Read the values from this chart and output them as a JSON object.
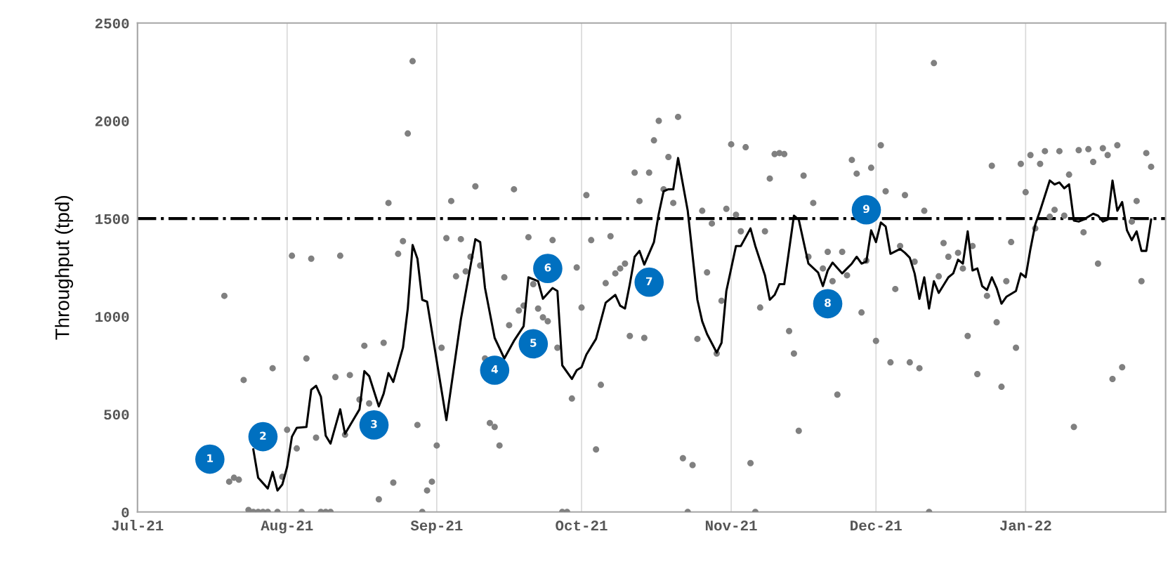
{
  "chart_data": {
    "type": "scatter",
    "ylabel": "Throughput (tpd)",
    "xlim": [
      "2021-07-01",
      "2022-01-30"
    ],
    "xticks": [
      {
        "value": "2021-07-01",
        "label": "Jul-21"
      },
      {
        "value": "2021-08-01",
        "label": "Aug-21"
      },
      {
        "value": "2021-09-01",
        "label": "Sep-21"
      },
      {
        "value": "2021-10-01",
        "label": "Oct-21"
      },
      {
        "value": "2021-11-01",
        "label": "Nov-21"
      },
      {
        "value": "2021-12-01",
        "label": "Dec-21"
      },
      {
        "value": "2022-01-01",
        "label": "Jan-22"
      }
    ],
    "ylim": [
      0,
      2500
    ],
    "yticks": [
      0,
      500,
      1000,
      1500,
      2000,
      2500
    ],
    "grid": "x",
    "legend": false,
    "ref_lines": [
      {
        "axis": "y",
        "value": 1500,
        "color": "#000000",
        "line_style": "dashdot"
      }
    ],
    "series": [
      {
        "color": "#808080",
        "marker": "circle",
        "x": [
          "2021-07-19",
          "2021-07-20",
          "2021-07-21",
          "2021-07-22",
          "2021-07-23",
          "2021-07-24",
          "2021-07-25",
          "2021-07-26",
          "2021-07-27",
          "2021-07-28",
          "2021-07-29",
          "2021-07-30",
          "2021-07-31",
          "2021-08-01",
          "2021-08-02",
          "2021-08-03",
          "2021-08-04",
          "2021-08-05",
          "2021-08-06",
          "2021-08-07",
          "2021-08-08",
          "2021-08-09",
          "2021-08-10",
          "2021-08-11",
          "2021-08-12",
          "2021-08-13",
          "2021-08-14",
          "2021-08-16",
          "2021-08-17",
          "2021-08-18",
          "2021-08-20",
          "2021-08-21",
          "2021-08-22",
          "2021-08-23",
          "2021-08-24",
          "2021-08-25",
          "2021-08-26",
          "2021-08-27",
          "2021-08-28",
          "2021-08-29",
          "2021-08-30",
          "2021-08-31",
          "2021-09-01",
          "2021-09-02",
          "2021-09-03",
          "2021-09-04",
          "2021-09-05",
          "2021-09-06",
          "2021-09-07",
          "2021-09-08",
          "2021-09-09",
          "2021-09-10",
          "2021-09-11",
          "2021-09-12",
          "2021-09-13",
          "2021-09-14",
          "2021-09-15",
          "2021-09-16",
          "2021-09-17",
          "2021-09-18",
          "2021-09-19",
          "2021-09-20",
          "2021-09-21",
          "2021-09-22",
          "2021-09-23",
          "2021-09-24",
          "2021-09-25",
          "2021-09-26",
          "2021-09-27",
          "2021-09-28",
          "2021-09-29",
          "2021-09-30",
          "2021-10-01",
          "2021-10-02",
          "2021-10-03",
          "2021-10-04",
          "2021-10-05",
          "2021-10-06",
          "2021-10-07",
          "2021-10-08",
          "2021-10-09",
          "2021-10-10",
          "2021-10-11",
          "2021-10-12",
          "2021-10-13",
          "2021-10-14",
          "2021-10-15",
          "2021-10-16",
          "2021-10-17",
          "2021-10-18",
          "2021-10-19",
          "2021-10-20",
          "2021-10-21",
          "2021-10-22",
          "2021-10-23",
          "2021-10-24",
          "2021-10-25",
          "2021-10-26",
          "2021-10-27",
          "2021-10-28",
          "2021-10-29",
          "2021-10-30",
          "2021-10-31",
          "2021-11-01",
          "2021-11-02",
          "2021-11-03",
          "2021-11-04",
          "2021-11-05",
          "2021-11-06",
          "2021-11-07",
          "2021-11-08",
          "2021-11-09",
          "2021-11-10",
          "2021-11-11",
          "2021-11-12",
          "2021-11-13",
          "2021-11-14",
          "2021-11-15",
          "2021-11-16",
          "2021-11-17",
          "2021-11-18",
          "2021-11-20",
          "2021-11-21",
          "2021-11-22",
          "2021-11-23",
          "2021-11-24",
          "2021-11-25",
          "2021-11-26",
          "2021-11-27",
          "2021-11-28",
          "2021-11-29",
          "2021-11-30",
          "2021-12-01",
          "2021-12-02",
          "2021-12-03",
          "2021-12-04",
          "2021-12-05",
          "2021-12-06",
          "2021-12-07",
          "2021-12-08",
          "2021-12-09",
          "2021-12-10",
          "2021-12-11",
          "2021-12-12",
          "2021-12-13",
          "2021-12-14",
          "2021-12-15",
          "2021-12-16",
          "2021-12-18",
          "2021-12-19",
          "2021-12-20",
          "2021-12-21",
          "2021-12-22",
          "2021-12-24",
          "2021-12-25",
          "2021-12-26",
          "2021-12-27",
          "2021-12-28",
          "2021-12-29",
          "2021-12-30",
          "2021-12-31",
          "2022-01-01",
          "2022-01-02",
          "2022-01-03",
          "2022-01-04",
          "2022-01-05",
          "2022-01-06",
          "2022-01-07",
          "2022-01-08",
          "2022-01-09",
          "2022-01-10",
          "2022-01-11",
          "2022-01-12",
          "2022-01-13",
          "2022-01-14",
          "2022-01-15",
          "2022-01-16",
          "2022-01-17",
          "2022-01-18",
          "2022-01-19",
          "2022-01-20",
          "2022-01-21",
          "2022-01-23",
          "2022-01-24",
          "2022-01-25",
          "2022-01-26",
          "2022-01-27"
        ],
        "values": [
          1105,
          155,
          175,
          165,
          675,
          10,
          0,
          0,
          0,
          0,
          735,
          0,
          180,
          420,
          1310,
          325,
          0,
          785,
          1295,
          380,
          0,
          0,
          0,
          690,
          1310,
          395,
          700,
          575,
          850,
          555,
          65,
          865,
          1580,
          150,
          1320,
          1385,
          1935,
          2305,
          445,
          0,
          110,
          155,
          340,
          840,
          1400,
          1590,
          1205,
          1395,
          1230,
          1305,
          1665,
          1260,
          785,
          455,
          435,
          340,
          1200,
          955,
          1650,
          1030,
          1055,
          1405,
          1165,
          1040,
          995,
          975,
          1390,
          840,
          0,
          0,
          580,
          1250,
          1045,
          1620,
          1390,
          320,
          650,
          1170,
          1410,
          1220,
          1245,
          1270,
          900,
          1735,
          1590,
          890,
          1735,
          1900,
          2000,
          1650,
          1815,
          1580,
          2020,
          275,
          0,
          240,
          885,
          1540,
          1225,
          1475,
          810,
          1080,
          1550,
          1880,
          1520,
          1435,
          1865,
          250,
          0,
          1045,
          1435,
          1705,
          1830,
          1835,
          1830,
          925,
          810,
          415,
          1720,
          1305,
          1580,
          1245,
          1330,
          1180,
          600,
          1330,
          1210,
          1800,
          1730,
          1020,
          1285,
          1760,
          875,
          1875,
          1640,
          765,
          1140,
          1360,
          1620,
          765,
          1280,
          735,
          1540,
          0,
          2295,
          1205,
          1375,
          1305,
          1325,
          1245,
          900,
          1360,
          705,
          1105,
          1770,
          970,
          640,
          1180,
          1380,
          840,
          1780,
          1635,
          1825,
          1450,
          1780,
          1845,
          1510,
          1545,
          1845,
          1515,
          1725,
          435,
          1850,
          1430,
          1855,
          1790,
          1270,
          1860,
          1825,
          680,
          1875,
          740,
          1485,
          1590,
          1180,
          1835,
          1765
        ]
      },
      {
        "type": "line",
        "color": "#000000",
        "marker": "none",
        "line_style": "solid",
        "x": [
          "2021-07-25",
          "2021-07-26",
          "2021-07-28",
          "2021-07-29",
          "2021-07-30",
          "2021-07-31",
          "2021-08-01",
          "2021-08-02",
          "2021-08-03",
          "2021-08-05",
          "2021-08-06",
          "2021-08-07",
          "2021-08-08",
          "2021-08-09",
          "2021-08-10",
          "2021-08-12",
          "2021-08-13",
          "2021-08-16",
          "2021-08-17",
          "2021-08-18",
          "2021-08-20",
          "2021-08-21",
          "2021-08-22",
          "2021-08-23",
          "2021-08-25",
          "2021-08-26",
          "2021-08-27",
          "2021-08-28",
          "2021-08-29",
          "2021-08-30",
          "2021-09-03",
          "2021-09-06",
          "2021-09-09",
          "2021-09-10",
          "2021-09-11",
          "2021-09-13",
          "2021-09-15",
          "2021-09-16",
          "2021-09-17",
          "2021-09-19",
          "2021-09-20",
          "2021-09-22",
          "2021-09-23",
          "2021-09-25",
          "2021-09-26",
          "2021-09-27",
          "2021-09-29",
          "2021-09-30",
          "2021-10-01",
          "2021-10-02",
          "2021-10-04",
          "2021-10-06",
          "2021-10-08",
          "2021-10-09",
          "2021-10-10",
          "2021-10-11",
          "2021-10-12",
          "2021-10-13",
          "2021-10-14",
          "2021-10-16",
          "2021-10-17",
          "2021-10-18",
          "2021-10-19",
          "2021-10-20",
          "2021-10-21",
          "2021-10-23",
          "2021-10-25",
          "2021-10-26",
          "2021-10-27",
          "2021-10-29",
          "2021-10-30",
          "2021-10-31",
          "2021-11-02",
          "2021-11-03",
          "2021-11-05",
          "2021-11-06",
          "2021-11-08",
          "2021-11-09",
          "2021-11-10",
          "2021-11-11",
          "2021-11-12",
          "2021-11-14",
          "2021-11-15",
          "2021-11-17",
          "2021-11-19",
          "2021-11-20",
          "2021-11-21",
          "2021-11-22",
          "2021-11-24",
          "2021-11-25",
          "2021-11-26",
          "2021-11-27",
          "2021-11-28",
          "2021-11-29",
          "2021-11-30",
          "2021-12-01",
          "2021-12-02",
          "2021-12-03",
          "2021-12-04",
          "2021-12-06",
          "2021-12-07",
          "2021-12-08",
          "2021-12-09",
          "2021-12-10",
          "2021-12-11",
          "2021-12-12",
          "2021-12-13",
          "2021-12-14",
          "2021-12-16",
          "2021-12-17",
          "2021-12-18",
          "2021-12-19",
          "2021-12-20",
          "2021-12-21",
          "2021-12-22",
          "2021-12-23",
          "2021-12-24",
          "2021-12-25",
          "2021-12-26",
          "2021-12-27",
          "2021-12-28",
          "2021-12-30",
          "2021-12-31",
          "2022-01-01",
          "2022-01-02",
          "2022-01-03",
          "2022-01-04",
          "2022-01-06",
          "2022-01-07",
          "2022-01-08",
          "2022-01-09",
          "2022-01-10",
          "2022-01-11",
          "2022-01-12",
          "2022-01-13",
          "2022-01-15",
          "2022-01-16",
          "2022-01-17",
          "2022-01-18",
          "2022-01-19",
          "2022-01-20",
          "2022-01-21",
          "2022-01-22",
          "2022-01-23",
          "2022-01-24",
          "2022-01-25",
          "2022-01-26",
          "2022-01-27"
        ],
        "values": [
          320,
          175,
          120,
          205,
          110,
          140,
          230,
          385,
          430,
          435,
          625,
          645,
          590,
          390,
          350,
          525,
          400,
          525,
          720,
          695,
          540,
          605,
          710,
          665,
          840,
          1040,
          1365,
          1295,
          1085,
          1075,
          470,
          985,
          1395,
          1380,
          1145,
          890,
          785,
          830,
          875,
          950,
          1200,
          1180,
          1090,
          1145,
          1130,
          750,
          680,
          725,
          740,
          805,
          885,
          1070,
          1110,
          1055,
          1040,
          1165,
          1305,
          1335,
          1265,
          1380,
          1525,
          1640,
          1650,
          1650,
          1810,
          1540,
          1085,
          975,
          910,
          815,
          865,
          1130,
          1360,
          1360,
          1450,
          1360,
          1210,
          1085,
          1110,
          1165,
          1165,
          1515,
          1495,
          1270,
          1225,
          1155,
          1235,
          1275,
          1220,
          1245,
          1270,
          1305,
          1270,
          1280,
          1440,
          1380,
          1480,
          1460,
          1320,
          1345,
          1325,
          1300,
          1220,
          1090,
          1200,
          1040,
          1180,
          1120,
          1200,
          1220,
          1290,
          1270,
          1435,
          1235,
          1245,
          1155,
          1135,
          1200,
          1145,
          1065,
          1100,
          1130,
          1220,
          1200,
          1345,
          1470,
          1540,
          1695,
          1675,
          1685,
          1655,
          1675,
          1490,
          1485,
          1495,
          1525,
          1515,
          1485,
          1495,
          1695,
          1540,
          1585,
          1440,
          1390,
          1435,
          1335,
          1335,
          1495
        ]
      }
    ],
    "annotations": [
      {
        "text": "1",
        "x": "2021-07-16",
        "y": 270
      },
      {
        "text": "2",
        "x": "2021-07-27",
        "y": 385
      },
      {
        "text": "3",
        "x": "2021-08-19",
        "y": 445
      },
      {
        "text": "4",
        "x": "2021-09-13",
        "y": 725
      },
      {
        "text": "5",
        "x": "2021-09-21",
        "y": 860
      },
      {
        "text": "6",
        "x": "2021-09-24",
        "y": 1245
      },
      {
        "text": "7",
        "x": "2021-10-15",
        "y": 1175
      },
      {
        "text": "8",
        "x": "2021-11-21",
        "y": 1065
      },
      {
        "text": "9",
        "x": "2021-11-29",
        "y": 1545
      }
    ]
  }
}
